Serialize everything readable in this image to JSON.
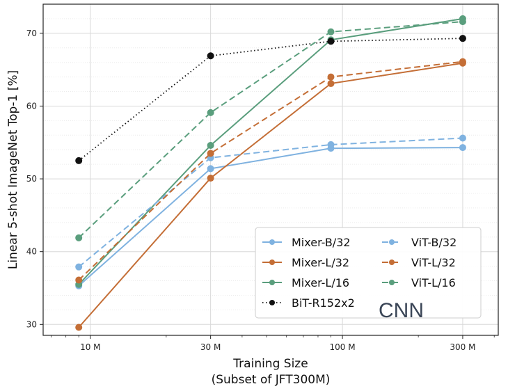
{
  "chart_data": {
    "type": "line",
    "xlabel_line1": "Training Size",
    "xlabel_line2": "(Subset of JFT300M)",
    "ylabel": "Linear 5-shot ImageNet Top-1 [%]",
    "x_scale": "log",
    "x": [
      9,
      30,
      90,
      300
    ],
    "xticks": [
      {
        "value": 10,
        "label": "10 M"
      },
      {
        "value": 30,
        "label": "30 M"
      },
      {
        "value": 100,
        "label": "100 M"
      },
      {
        "value": 300,
        "label": "300 M"
      }
    ],
    "yticks": [
      30,
      40,
      50,
      60,
      70
    ],
    "ylim": [
      28.5,
      74
    ],
    "xlim": [
      6.5,
      415
    ],
    "grid": true,
    "legend_position": "lower-right",
    "annotation": "CNN",
    "series": [
      {
        "name": "Mixer-B/32",
        "color": "#7fb2e0",
        "style": "solid",
        "values": [
          35.3,
          51.4,
          54.2,
          54.3
        ]
      },
      {
        "name": "Mixer-L/32",
        "color": "#c46e36",
        "style": "solid",
        "values": [
          29.6,
          50.1,
          63.1,
          65.9
        ]
      },
      {
        "name": "Mixer-L/16",
        "color": "#5a9e7d",
        "style": "solid",
        "values": [
          35.5,
          54.6,
          69.1,
          72.0
        ]
      },
      {
        "name": "BiT-R152x2",
        "color": "#111111",
        "style": "dotted",
        "values": [
          52.5,
          66.9,
          68.9,
          69.3
        ]
      },
      {
        "name": "ViT-B/32",
        "color": "#7fb2e0",
        "style": "dashed",
        "values": [
          37.9,
          52.9,
          54.7,
          55.6
        ]
      },
      {
        "name": "ViT-L/32",
        "color": "#c46e36",
        "style": "dashed",
        "values": [
          36.1,
          53.5,
          64.0,
          66.1
        ]
      },
      {
        "name": "ViT-L/16",
        "color": "#5a9e7d",
        "style": "dashed",
        "values": [
          41.9,
          59.1,
          70.2,
          71.6
        ]
      }
    ]
  }
}
